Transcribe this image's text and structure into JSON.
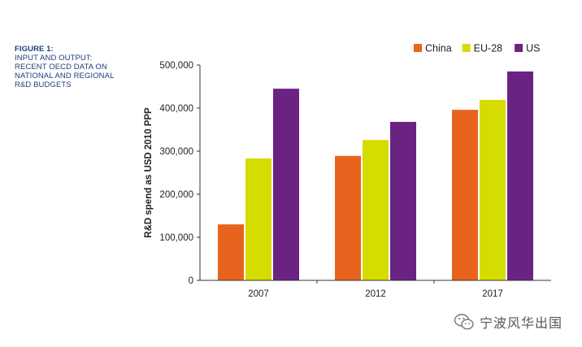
{
  "caption": {
    "figure_label": "FIGURE 1:",
    "lines": [
      "INPUT AND OUTPUT:",
      "RECENT OECD DATA ON",
      "NATIONAL AND REGIONAL",
      "R&D BUDGETS"
    ]
  },
  "colors": {
    "caption": "#1f3f7a",
    "axis": "#333333",
    "text": "#222222"
  },
  "chart_data": {
    "type": "bar",
    "title": "",
    "xlabel": "",
    "ylabel": "R&D spend as USD 2010 PPP",
    "categories": [
      "2007",
      "2012",
      "2017"
    ],
    "series": [
      {
        "name": "China",
        "color": "#e8641e",
        "values": [
          130000,
          289000,
          396000
        ]
      },
      {
        "name": "EU-28",
        "color": "#d4dc00",
        "values": [
          283000,
          326000,
          419000
        ]
      },
      {
        "name": "US",
        "color": "#6b2383",
        "values": [
          445000,
          368000,
          485000
        ]
      }
    ],
    "ylim": [
      0,
      500000
    ],
    "yticks": [
      0,
      100000,
      200000,
      300000,
      400000,
      500000
    ],
    "ytick_labels": [
      "0",
      "100,000",
      "200,000",
      "300,000",
      "400,000",
      "500,000"
    ],
    "grid": false,
    "legend_position": "top-right"
  },
  "watermark": {
    "text": "宁波风华出国",
    "icon": "wechat-icon"
  }
}
